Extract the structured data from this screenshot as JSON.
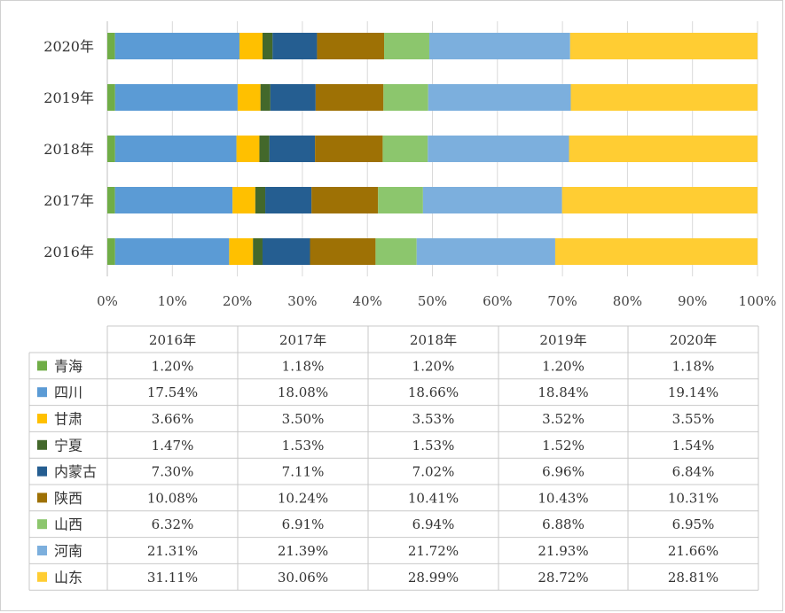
{
  "chart_data": {
    "type": "bar",
    "orientation": "horizontal",
    "stacked": true,
    "percent_stacked": true,
    "categories": [
      "2016年",
      "2017年",
      "2018年",
      "2019年",
      "2020年"
    ],
    "x_ticks": [
      "0%",
      "10%",
      "20%",
      "30%",
      "40%",
      "50%",
      "60%",
      "70%",
      "80%",
      "90%",
      "100%"
    ],
    "xlim": [
      0,
      100
    ],
    "grid": "vertical",
    "legend": "data-table-below",
    "series": [
      {
        "name": "青海",
        "color": "#70ad47",
        "values": [
          1.2,
          1.18,
          1.2,
          1.2,
          1.18
        ],
        "labels": [
          "1.20%",
          "1.18%",
          "1.20%",
          "1.20%",
          "1.18%"
        ]
      },
      {
        "name": "四川",
        "color": "#5b9bd5",
        "values": [
          17.54,
          18.08,
          18.66,
          18.84,
          19.14
        ],
        "labels": [
          "17.54%",
          "18.08%",
          "18.66%",
          "18.84%",
          "19.14%"
        ]
      },
      {
        "name": "甘肃",
        "color": "#ffc000",
        "values": [
          3.66,
          3.5,
          3.53,
          3.52,
          3.55
        ],
        "labels": [
          "3.66%",
          "3.50%",
          "3.53%",
          "3.52%",
          "3.55%"
        ]
      },
      {
        "name": "宁夏",
        "color": "#43682b",
        "values": [
          1.47,
          1.53,
          1.53,
          1.52,
          1.54
        ],
        "labels": [
          "1.47%",
          "1.53%",
          "1.53%",
          "1.52%",
          "1.54%"
        ]
      },
      {
        "name": "内蒙古",
        "color": "#255e91",
        "values": [
          7.3,
          7.11,
          7.02,
          6.96,
          6.84
        ],
        "labels": [
          "7.30%",
          "7.11%",
          "7.02%",
          "6.96%",
          "6.84%"
        ]
      },
      {
        "name": "陕西",
        "color": "#9e7105",
        "values": [
          10.08,
          10.24,
          10.41,
          10.43,
          10.31
        ],
        "labels": [
          "10.08%",
          "10.24%",
          "10.41%",
          "10.43%",
          "10.31%"
        ]
      },
      {
        "name": "山西",
        "color": "#8cc66d",
        "values": [
          6.32,
          6.91,
          6.94,
          6.88,
          6.95
        ],
        "labels": [
          "6.32%",
          "6.91%",
          "6.94%",
          "6.88%",
          "6.95%"
        ]
      },
      {
        "name": "河南",
        "color": "#7cafdd",
        "values": [
          21.31,
          21.39,
          21.72,
          21.93,
          21.66
        ],
        "labels": [
          "21.31%",
          "21.39%",
          "21.72%",
          "21.93%",
          "21.66%"
        ]
      },
      {
        "name": "山东",
        "color": "#ffcd33",
        "values": [
          31.11,
          30.06,
          28.99,
          28.72,
          28.81
        ],
        "labels": [
          "31.11%",
          "30.06%",
          "28.99%",
          "28.72%",
          "28.81%"
        ]
      }
    ]
  }
}
